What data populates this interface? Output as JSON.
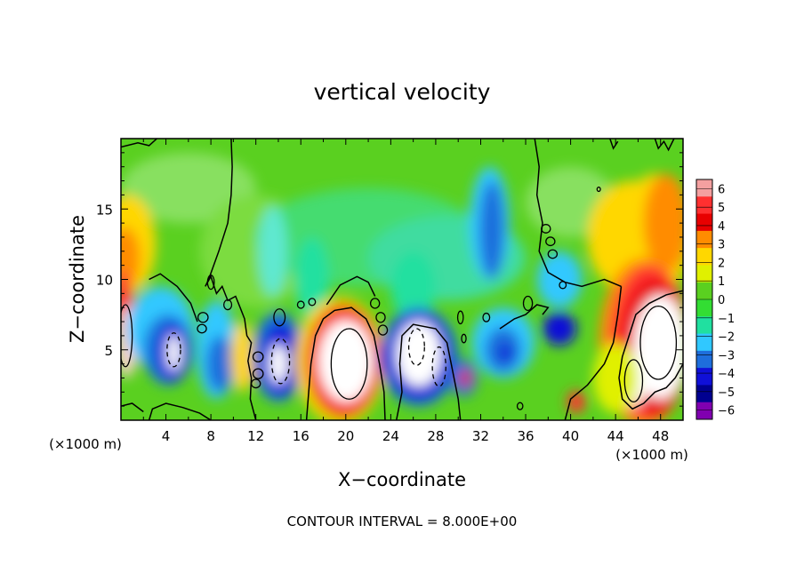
{
  "chart_data": {
    "type": "heatmap",
    "title": "vertical velocity",
    "xlabel": "X−coordinate",
    "ylabel": "Z−coordinate",
    "x_unit_left": "(×1000 m)",
    "x_unit_right": "(×1000 m)",
    "footer": "CONTOUR INTERVAL = 8.000E+00",
    "xlim": [
      0,
      50
    ],
    "ylim": [
      0,
      20
    ],
    "x_ticks": [
      "4",
      "8",
      "12",
      "16",
      "20",
      "24",
      "28",
      "32",
      "36",
      "40",
      "44",
      "48"
    ],
    "x_tick_values": [
      4,
      8,
      12,
      16,
      20,
      24,
      28,
      32,
      36,
      40,
      44,
      48
    ],
    "y_ticks": [
      "5",
      "10",
      "15"
    ],
    "y_tick_values": [
      5,
      10,
      15
    ],
    "colorbar": {
      "labels": [
        "6",
        "5",
        "4",
        "3",
        "2",
        "1",
        "0",
        "−1",
        "−2",
        "−3",
        "−4",
        "−5",
        "−6"
      ],
      "values": [
        6,
        5,
        4,
        3,
        2,
        1,
        0,
        -1,
        -2,
        -3,
        -4,
        -5,
        -6
      ],
      "colors": [
        "#f4a0a0",
        "#ff3030",
        "#e80000",
        "#ff8c00",
        "#ffd700",
        "#e0f000",
        "#5ad020",
        "#33dd33",
        "#20e0a0",
        "#30c8ff",
        "#1e6edc",
        "#1010d8",
        "#000090",
        "#8000b0"
      ]
    },
    "features": [
      {
        "kind": "updraft",
        "x": 1,
        "z": 5,
        "w": 5
      },
      {
        "kind": "downdraft",
        "x": 4.5,
        "z": 4.5,
        "w": -6
      },
      {
        "kind": "downdraft",
        "x": 14,
        "z": 4,
        "w": -6
      },
      {
        "kind": "updraft",
        "x": 20,
        "z": 4.2,
        "w": 12
      },
      {
        "kind": "downdraft",
        "x": 26.5,
        "z": 4.5,
        "w": -7
      },
      {
        "kind": "downdraft",
        "x": 34,
        "z": 5,
        "w": -4
      },
      {
        "kind": "downdraft",
        "x": 33,
        "z": 14,
        "w": -3
      },
      {
        "kind": "updraft",
        "x": 47,
        "z": 5,
        "w": 10
      }
    ]
  }
}
